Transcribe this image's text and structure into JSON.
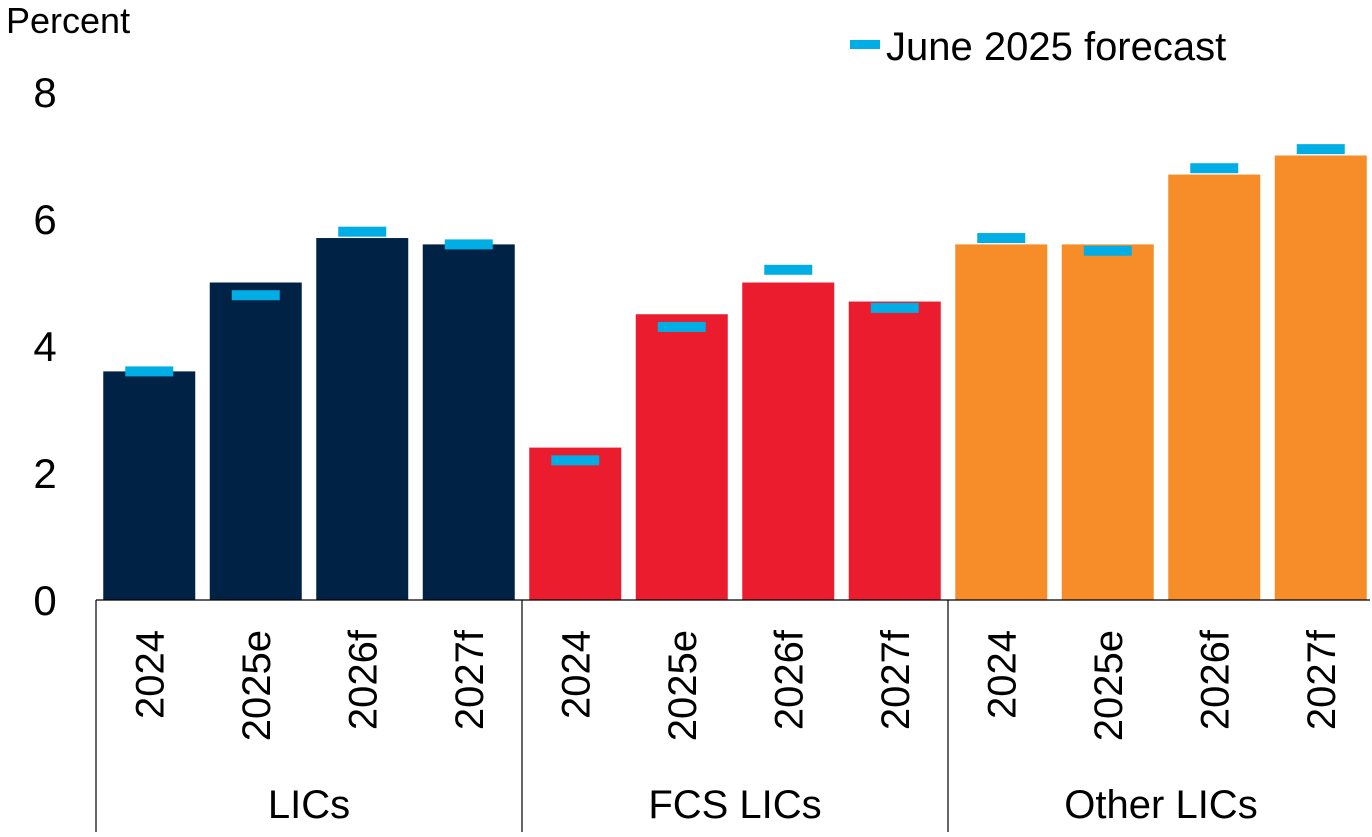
{
  "chart_data": {
    "type": "bar",
    "ylabel": "Percent",
    "ylim": [
      0,
      8
    ],
    "yticks": [
      0,
      2,
      4,
      6,
      8
    ],
    "legend": {
      "position": "top-right",
      "entries": [
        "June 2025 forecast"
      ]
    },
    "groups": [
      {
        "name": "LICs",
        "color": "#002244",
        "categories": [
          "2024",
          "2025e",
          "2026f",
          "2027f"
        ],
        "values": [
          3.6,
          5.0,
          5.7,
          5.6
        ],
        "june_2025_forecast": [
          3.6,
          4.8,
          5.8,
          5.6
        ]
      },
      {
        "name": "FCS LICs",
        "color": "#EB1C2D",
        "categories": [
          "2024",
          "2025e",
          "2026f",
          "2027f"
        ],
        "values": [
          2.4,
          4.5,
          5.0,
          4.7
        ],
        "june_2025_forecast": [
          2.2,
          4.3,
          5.2,
          4.6
        ]
      },
      {
        "name": "Other LICs",
        "color": "#F78D28",
        "categories": [
          "2024",
          "2025e",
          "2026f",
          "2027f"
        ],
        "values": [
          5.6,
          5.6,
          6.7,
          7.0
        ],
        "june_2025_forecast": [
          5.7,
          5.5,
          6.8,
          7.1
        ]
      }
    ],
    "marker_color": "#00ADE4"
  }
}
